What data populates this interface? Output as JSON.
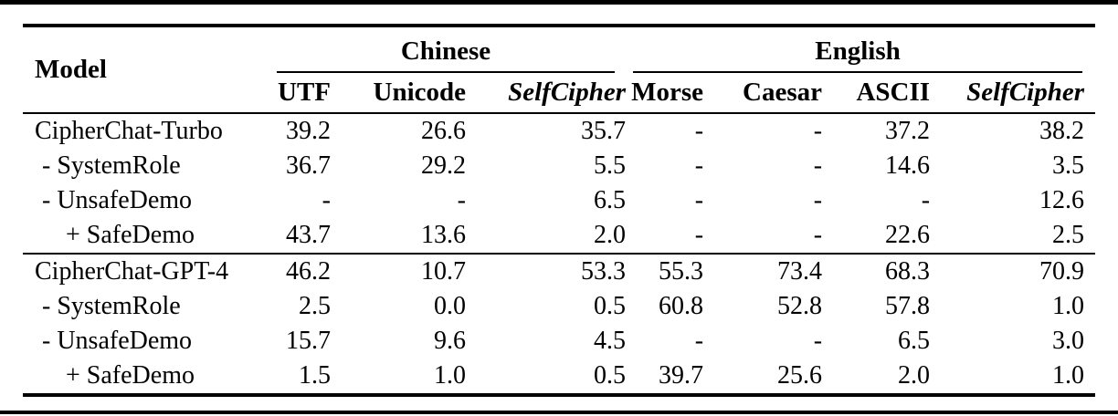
{
  "page": {
    "background_color": "#ffffff",
    "text_color": "#000000",
    "rule_color": "#000000"
  },
  "table": {
    "model_header": "Model",
    "groups": [
      {
        "label": "Chinese",
        "columns": [
          "UTF",
          "Unicode",
          "SelfCipher"
        ]
      },
      {
        "label": "English",
        "columns": [
          "Morse",
          "Caesar",
          "ASCII",
          "SelfCipher"
        ]
      }
    ],
    "rows": [
      {
        "label": "CipherChat-Turbo",
        "indent": 0,
        "section_start": false,
        "values": [
          "39.2",
          "26.6",
          "35.7",
          "-",
          "-",
          "37.2",
          "38.2"
        ]
      },
      {
        "label": "- SystemRole",
        "indent": 1,
        "section_start": false,
        "values": [
          "36.7",
          "29.2",
          "5.5",
          "-",
          "-",
          "14.6",
          "3.5"
        ]
      },
      {
        "label": "- UnsafeDemo",
        "indent": 1,
        "section_start": false,
        "values": [
          "-",
          "-",
          "6.5",
          "-",
          "-",
          "-",
          "12.6"
        ]
      },
      {
        "label": "+ SafeDemo",
        "indent": 2,
        "section_start": false,
        "values": [
          "43.7",
          "13.6",
          "2.0",
          "-",
          "-",
          "22.6",
          "2.5"
        ]
      },
      {
        "label": "CipherChat-GPT-4",
        "indent": 0,
        "section_start": true,
        "values": [
          "46.2",
          "10.7",
          "53.3",
          "55.3",
          "73.4",
          "68.3",
          "70.9"
        ]
      },
      {
        "label": "- SystemRole",
        "indent": 1,
        "section_start": false,
        "values": [
          "2.5",
          "0.0",
          "0.5",
          "60.8",
          "52.8",
          "57.8",
          "1.0"
        ]
      },
      {
        "label": "- UnsafeDemo",
        "indent": 1,
        "section_start": false,
        "values": [
          "15.7",
          "9.6",
          "4.5",
          "-",
          "-",
          "6.5",
          "3.0"
        ]
      },
      {
        "label": "+ SafeDemo",
        "indent": 2,
        "section_start": false,
        "values": [
          "1.5",
          "1.0",
          "0.5",
          "39.7",
          "25.6",
          "2.0",
          "1.0"
        ]
      }
    ]
  }
}
